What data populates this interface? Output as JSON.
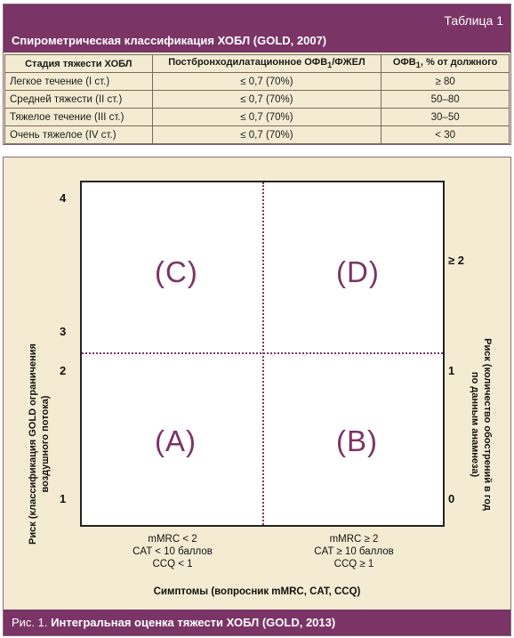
{
  "table": {
    "number": "Таблица 1",
    "title": "Спирометрическая классификация ХОБЛ (GOLD, 2007)",
    "headers": {
      "stage": "Стадия тяжести ХОБЛ",
      "ratio_main": "Постбронходилатационное ОФВ",
      "ratio_sub": "1",
      "ratio_tail": "/ФЖЕЛ",
      "fev_main": "ОФВ",
      "fev_sub": "1",
      "fev_tail": ", % от должного"
    },
    "rows": [
      {
        "stage": "Легкое течение (I ст.)",
        "ratio": "≤ 0,7 (70%)",
        "fev": "≥ 80"
      },
      {
        "stage": "Средней тяжести (II ст.)",
        "ratio": "≤ 0,7 (70%)",
        "fev": "50–80"
      },
      {
        "stage": "Тяжелое течение (III ст.)",
        "ratio": "≤ 0,7 (70%)",
        "fev": "30–50"
      },
      {
        "stage": "Очень тяжелое (IV ст.)",
        "ratio": "≤ 0,7 (70%)",
        "fev": "< 30"
      }
    ]
  },
  "figure": {
    "quadrants": {
      "C": "(C)",
      "D": "(D)",
      "A": "(A)",
      "B": "(B)"
    },
    "left_ticks": [
      "4",
      "3",
      "2",
      "1"
    ],
    "right_ticks": [
      "≥ 2",
      "1",
      "0"
    ],
    "y_left_label_1": "Риск (классификация GOLD ограничения",
    "y_left_label_2": "воздушного потока)",
    "y_right_label_1": "Риск (количество обострений в год",
    "y_right_label_2": "по данным анамнеза)",
    "x_left": {
      "l1": "mMRC < 2",
      "l2": "CAT < 10 баллов",
      "l3": "CCQ < 1"
    },
    "x_right": {
      "l1": "mMRC ≥ 2",
      "l2": "CAT ≥ 10 баллов",
      "l3": "CCQ ≥ 1"
    },
    "x_label": "Симптомы (вопросник mMRC, CAT, CCQ)",
    "caption_prefix": "Рис. 1.",
    "caption_title": "Интегральная оценка тяжести ХОБЛ (GOLD, 2013)"
  }
}
